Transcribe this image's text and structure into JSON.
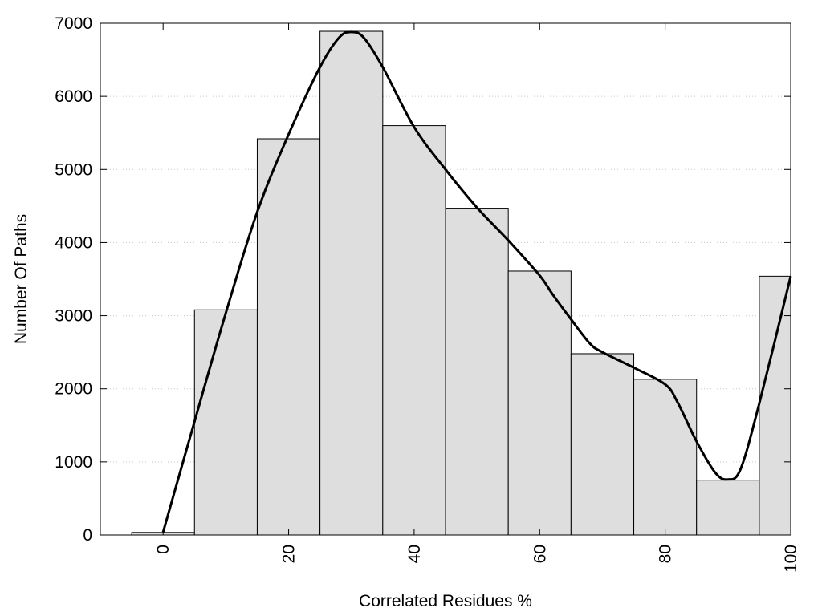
{
  "chart_data": {
    "type": "bar",
    "xlabel": "Correlated Residues %",
    "ylabel": "Number Of Paths",
    "xlim": [
      -10,
      100
    ],
    "ylim": [
      0,
      7000
    ],
    "grid": true,
    "bin_width": 10,
    "bins": [
      {
        "center": 0,
        "value": 35
      },
      {
        "center": 10,
        "value": 3080
      },
      {
        "center": 20,
        "value": 5420
      },
      {
        "center": 30,
        "value": 6890
      },
      {
        "center": 40,
        "value": 5600
      },
      {
        "center": 50,
        "value": 4470
      },
      {
        "center": 60,
        "value": 3610
      },
      {
        "center": 70,
        "value": 2480
      },
      {
        "center": 80,
        "value": 2130
      },
      {
        "center": 90,
        "value": 750
      },
      {
        "center": 100,
        "value": 3540
      }
    ],
    "x_ticks": [
      {
        "value": 0,
        "label": "0"
      },
      {
        "value": 20,
        "label": "20"
      },
      {
        "value": 40,
        "label": "40"
      },
      {
        "value": 60,
        "label": "60"
      },
      {
        "value": 80,
        "label": "80"
      },
      {
        "value": 100,
        "label": "100"
      }
    ],
    "y_ticks": [
      {
        "value": 0,
        "label": "0"
      },
      {
        "value": 1000,
        "label": "1000"
      },
      {
        "value": 2000,
        "label": "2000"
      },
      {
        "value": 3000,
        "label": "3000"
      },
      {
        "value": 4000,
        "label": "4000"
      },
      {
        "value": 5000,
        "label": "5000"
      },
      {
        "value": 6000,
        "label": "6000"
      },
      {
        "value": 7000,
        "label": "7000"
      }
    ],
    "smooth_curve": {
      "x": [
        0,
        5,
        10,
        15,
        20,
        25,
        28,
        30,
        32,
        35,
        40,
        45,
        50,
        55,
        60,
        62,
        65,
        68,
        70,
        75,
        80,
        82,
        85,
        88,
        90,
        92,
        95,
        100
      ],
      "y": [
        40,
        1550,
        3040,
        4420,
        5480,
        6400,
        6800,
        6880,
        6800,
        6400,
        5580,
        5000,
        4480,
        4030,
        3550,
        3300,
        2950,
        2620,
        2500,
        2290,
        2060,
        1810,
        1280,
        850,
        760,
        900,
        1800,
        3540
      ]
    },
    "colors": {
      "bar_fill": "#dedede",
      "bar_stroke": "#000000",
      "curve": "#000000",
      "grid": "#c8c8c8"
    }
  }
}
